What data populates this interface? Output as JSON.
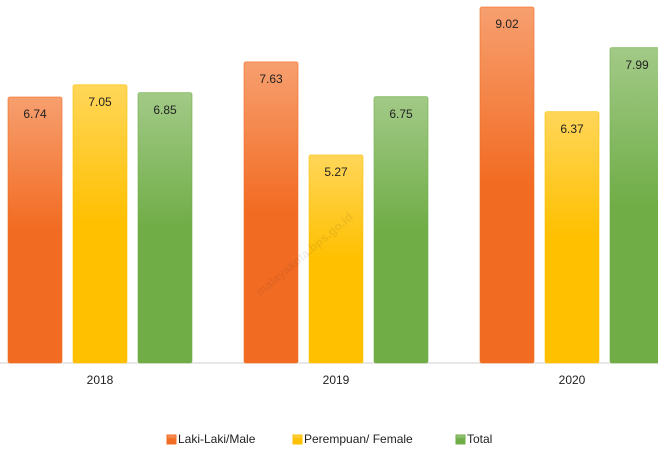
{
  "chart_data": {
    "type": "bar",
    "categories": [
      "2018",
      "2019",
      "2020"
    ],
    "series": [
      {
        "name": "Laki-Laki/Male",
        "color": "#f26b22",
        "values": [
          6.74,
          7.63,
          9.02
        ]
      },
      {
        "name": "Perempuan/ Female",
        "color": "#ffc000",
        "values": [
          7.05,
          5.27,
          6.37
        ]
      },
      {
        "name": "Total",
        "color": "#70ad47",
        "values": [
          6.85,
          6.75,
          7.99
        ]
      }
    ],
    "legend": "bottom",
    "watermark": "malayakota.bps.go.id"
  }
}
